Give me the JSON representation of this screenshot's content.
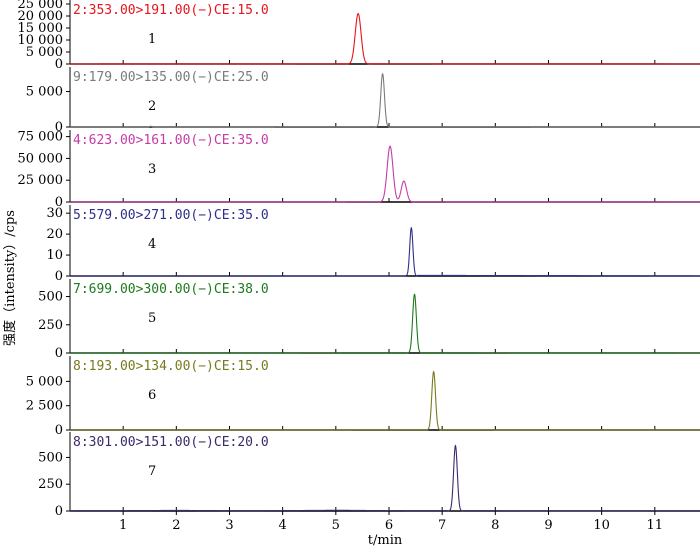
{
  "chart_data": {
    "type": "line",
    "xlabel": "t/min",
    "ylabel": "强度（intensity）/cps",
    "xlim": [
      0,
      11.85
    ],
    "x_ticks": [
      1,
      2,
      3,
      4,
      5,
      6,
      7,
      8,
      9,
      10,
      11
    ],
    "panels": [
      {
        "number": "1",
        "title": "2:353.00>191.00(−)CE:15.0",
        "color": "#e8141c",
        "ylim": [
          0,
          25000
        ],
        "y_ticks": [
          0,
          5000,
          10000,
          15000,
          20000,
          25000
        ],
        "y_tick_labels": [
          "0",
          "5 000",
          "10 000",
          "15 000",
          "20 000",
          "25 000"
        ],
        "peaks": [
          {
            "t": 5.42,
            "height": 21000,
            "width": 0.055
          }
        ],
        "points": [
          [
            0,
            0
          ],
          [
            5.3,
            200
          ],
          [
            5.35,
            4200
          ],
          [
            5.39,
            16500
          ],
          [
            5.42,
            21000
          ],
          [
            5.45,
            16000
          ],
          [
            5.49,
            4000
          ],
          [
            5.55,
            200
          ],
          [
            11.85,
            0
          ]
        ]
      },
      {
        "number": "2",
        "title": "9:179.00>135.00(−)CE:25.0",
        "color": "#7b7b7b",
        "ylim": [
          0,
          7900
        ],
        "y_ticks": [
          0,
          5000
        ],
        "y_tick_labels": [
          "0",
          "5 000"
        ],
        "peaks": [
          {
            "t": 5.88,
            "height": 7500,
            "width": 0.035
          }
        ],
        "points": [
          [
            0,
            0
          ],
          [
            1.48,
            0
          ],
          [
            1.52,
            420
          ],
          [
            1.56,
            0
          ],
          [
            5.8,
            100
          ],
          [
            5.84,
            3500
          ],
          [
            5.88,
            7500
          ],
          [
            5.92,
            3500
          ],
          [
            5.96,
            100
          ],
          [
            11.85,
            0
          ]
        ]
      },
      {
        "number": "3",
        "title": "4:623.00>161.00(−)CE:35.0",
        "color": "#c43ca8",
        "ylim": [
          0,
          78000
        ],
        "y_ticks": [
          0,
          25000,
          50000,
          75000
        ],
        "y_tick_labels": [
          "0",
          "25 000",
          "50 000",
          "75 000"
        ],
        "peaks": [
          {
            "t": 6.02,
            "height": 64000,
            "width": 0.055
          },
          {
            "t": 6.28,
            "height": 24000,
            "width": 0.05
          }
        ],
        "points": [
          [
            0,
            0
          ],
          [
            5.9,
            500
          ],
          [
            5.95,
            30000
          ],
          [
            6.02,
            64000
          ],
          [
            6.1,
            28000
          ],
          [
            6.18,
            4000
          ],
          [
            6.23,
            12000
          ],
          [
            6.28,
            24000
          ],
          [
            6.34,
            10000
          ],
          [
            6.42,
            500
          ],
          [
            11.85,
            0
          ]
        ]
      },
      {
        "number": "4",
        "title": "5:579.00>271.00(−)CE:35.0",
        "color": "#2f2f8c",
        "ylim": [
          0,
          32
        ],
        "y_ticks": [
          0,
          10,
          20,
          30
        ],
        "y_tick_labels": [
          "0",
          "10",
          "20",
          "30"
        ],
        "peaks": [
          {
            "t": 6.42,
            "height": 23,
            "width": 0.03
          }
        ],
        "points": [
          [
            0,
            0
          ],
          [
            6.3,
            0
          ],
          [
            6.35,
            2
          ],
          [
            6.38,
            8
          ],
          [
            6.42,
            23
          ],
          [
            6.45,
            10
          ],
          [
            6.48,
            1
          ],
          [
            11.85,
            0
          ]
        ]
      },
      {
        "number": "5",
        "title": "7:699.00>300.00(−)CE:38.0",
        "color": "#1e7a1e",
        "ylim": [
          0,
          620
        ],
        "y_ticks": [
          0,
          250,
          500
        ],
        "y_tick_labels": [
          "0",
          "250",
          "500"
        ],
        "peaks": [
          {
            "t": 6.48,
            "height": 520,
            "width": 0.035
          }
        ],
        "points": [
          [
            0,
            0
          ],
          [
            6.38,
            5
          ],
          [
            6.43,
            180
          ],
          [
            6.48,
            520
          ],
          [
            6.53,
            180
          ],
          [
            6.58,
            5
          ],
          [
            11.85,
            0
          ]
        ]
      },
      {
        "number": "6",
        "title": "8:193.00>134.00(−)CE:15.0",
        "color": "#7a7a1e",
        "ylim": [
          0,
          7200
        ],
        "y_ticks": [
          0,
          2500,
          5000
        ],
        "y_tick_labels": [
          "0",
          "2 500",
          "5 000"
        ],
        "peaks": [
          {
            "t": 6.84,
            "height": 6000,
            "width": 0.035
          }
        ],
        "points": [
          [
            0,
            0
          ],
          [
            6.74,
            50
          ],
          [
            6.79,
            2000
          ],
          [
            6.84,
            6000
          ],
          [
            6.89,
            2000
          ],
          [
            6.94,
            50
          ],
          [
            11.85,
            0
          ]
        ]
      },
      {
        "number": "7",
        "title": "8:301.00>151.00(−)CE:20.0",
        "color": "#3c2a6a",
        "ylim": [
          0,
          700
        ],
        "y_ticks": [
          0,
          250,
          500
        ],
        "y_tick_labels": [
          "0",
          "250",
          "500"
        ],
        "peaks": [
          {
            "t": 7.25,
            "height": 610,
            "width": 0.035
          }
        ],
        "points": [
          [
            0,
            8
          ],
          [
            1.1,
            12
          ],
          [
            2.0,
            18
          ],
          [
            3.0,
            10
          ],
          [
            4.0,
            12
          ],
          [
            5.05,
            22
          ],
          [
            5.9,
            12
          ],
          [
            7.15,
            10
          ],
          [
            7.2,
            200
          ],
          [
            7.25,
            610
          ],
          [
            7.3,
            200
          ],
          [
            7.36,
            10
          ],
          [
            9.0,
            6
          ],
          [
            11.85,
            8
          ]
        ]
      }
    ]
  }
}
